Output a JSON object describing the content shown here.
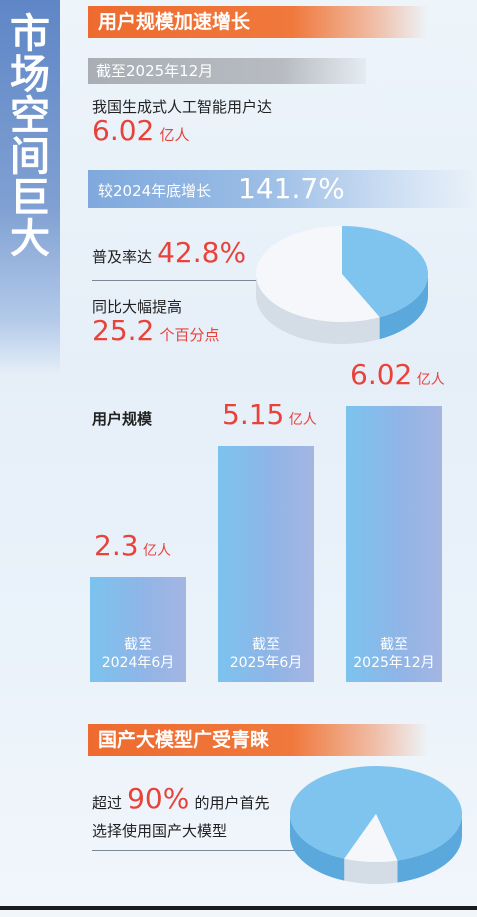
{
  "side_title": [
    "市",
    "场",
    "空",
    "间",
    "巨",
    "大"
  ],
  "section1": {
    "header": "用户规模加速增长",
    "date_label": "截至2025年12月",
    "users_text": "我国生成式人工智能用户达",
    "users_value": "6.02",
    "users_unit": "亿人",
    "growth_label": "较2024年底增长",
    "growth_value": "141.7%",
    "penetration_label": "普及率达",
    "penetration_value": "42.8%",
    "yoy_label": "同比大幅提高",
    "yoy_value": "25.2",
    "yoy_unit": "个百分点",
    "pie_fraction": 0.428,
    "pie_colors": {
      "share": "#7fc4ee",
      "rest": "#f5f7fa",
      "share_side": "#5aa8dc",
      "rest_side": "#d4dce6"
    }
  },
  "chart_data": {
    "type": "bar",
    "title": "用户规模",
    "categories": [
      "截至\n2024年6月",
      "截至\n2025年6月",
      "截至\n2025年12月"
    ],
    "values": [
      2.3,
      5.15,
      6.02
    ],
    "value_labels": [
      "2.3",
      "5.15",
      "6.02"
    ],
    "unit": "亿人",
    "ylim": [
      0,
      6.02
    ]
  },
  "section2": {
    "header": "国产大模型广受青睐",
    "line1_pre": "超过",
    "line1_value": "90%",
    "line1_post": "的用户首先",
    "line2": "选择使用国产大模型",
    "pie_fraction": 0.9,
    "pie_colors": {
      "share": "#7fc4ee",
      "rest": "#f5f7fa",
      "share_side": "#5aa8dc",
      "rest_side": "#d4dce6"
    }
  },
  "colors": {
    "accent_orange": "#ee6b2f",
    "accent_red": "#e8433a",
    "brand_blue": "#5f86c6"
  }
}
